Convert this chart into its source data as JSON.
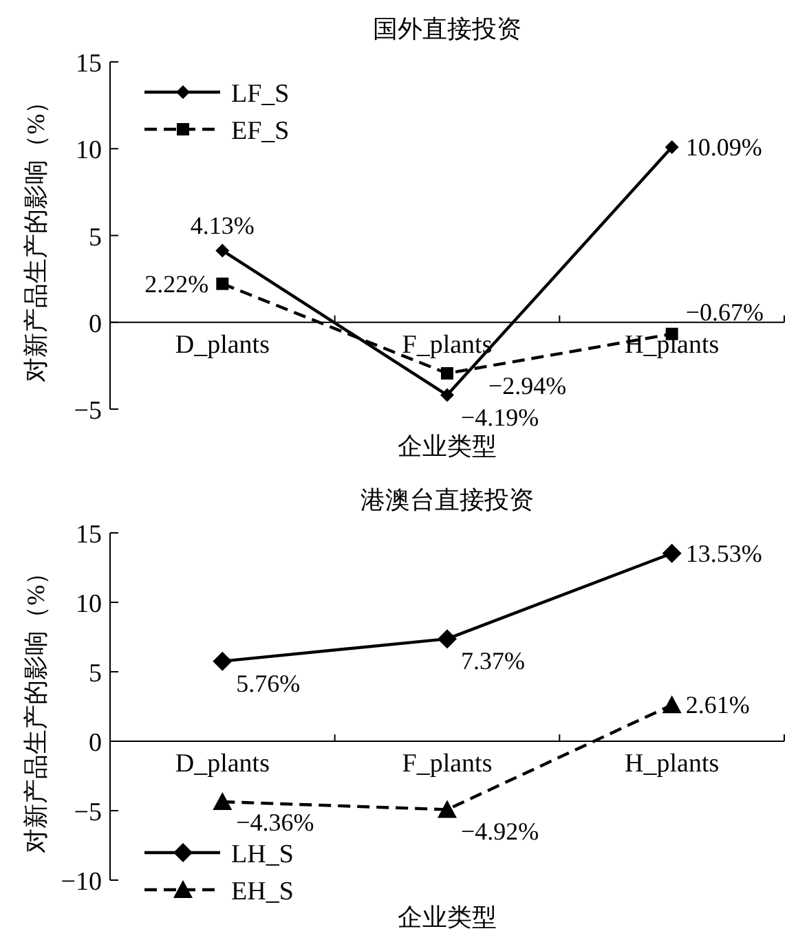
{
  "chart_data": [
    {
      "type": "line",
      "title": "国外直接投资",
      "xlabel": "企业类型",
      "ylabel": "对新产品生产的影响（%）",
      "categories": [
        "D_plants",
        "F_plants",
        "H_plants"
      ],
      "ylim": [
        -5,
        15
      ],
      "yticks": [
        -5,
        0,
        5,
        10,
        15
      ],
      "grid": false,
      "legend": "top left",
      "series": [
        {
          "name": "LF_S",
          "color": "#000000",
          "marker": "diamond",
          "line_style": "solid",
          "values": [
            4.13,
            -4.19,
            10.09
          ],
          "value_labels": [
            "4.13%",
            "−4.19%",
            "10.09%"
          ]
        },
        {
          "name": "EF_S",
          "color": "#000000",
          "marker": "square",
          "line_style": "dashed",
          "values": [
            2.22,
            -2.94,
            -0.67
          ],
          "value_labels": [
            "2.22%",
            "−2.94%",
            "−0.67%"
          ]
        }
      ]
    },
    {
      "type": "line",
      "title": "港澳台直接投资",
      "xlabel": "企业类型",
      "ylabel": "对新产品生产的影响（%）",
      "categories": [
        "D_plants",
        "F_plants",
        "H_plants"
      ],
      "ylim": [
        -10,
        15
      ],
      "yticks": [
        -10,
        -5,
        0,
        5,
        10,
        15
      ],
      "grid": false,
      "legend": "bottom left",
      "series": [
        {
          "name": "LH_S",
          "color": "#000000",
          "marker": "diamond",
          "line_style": "solid",
          "values": [
            5.76,
            7.37,
            13.53
          ],
          "value_labels": [
            "5.76%",
            "7.37%",
            "13.53%"
          ]
        },
        {
          "name": "EH_S",
          "color": "#000000",
          "marker": "triangle",
          "line_style": "dashed",
          "values": [
            -4.36,
            -4.92,
            2.61
          ],
          "value_labels": [
            "−4.36%",
            "−4.92%",
            "2.61%"
          ]
        }
      ]
    }
  ]
}
